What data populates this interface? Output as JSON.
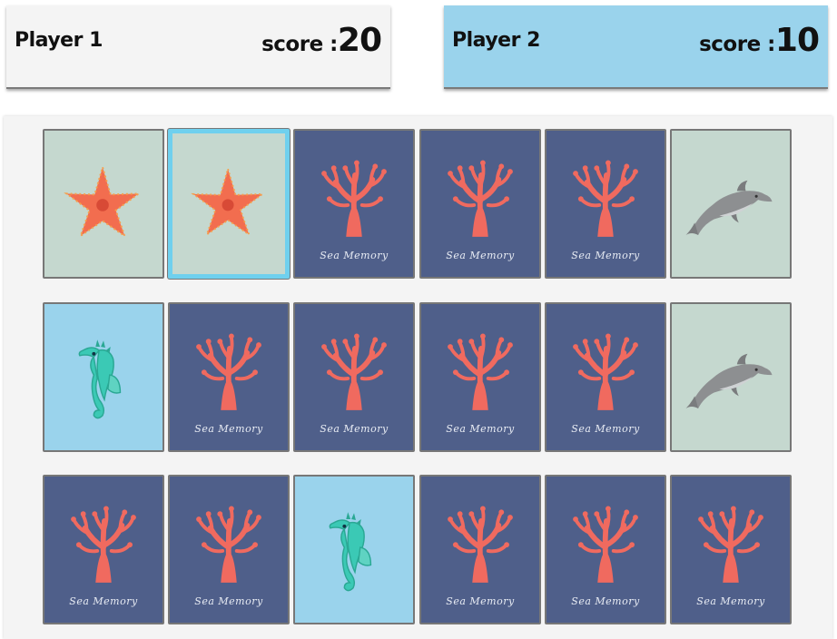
{
  "players": [
    {
      "name": "Player 1",
      "score_label": "score :",
      "score": "20",
      "active": false
    },
    {
      "name": "Player 2",
      "score_label": "score :",
      "score": "10",
      "active": true
    }
  ],
  "colors": {
    "card_back": "#4f5f8a",
    "face_green": "#c5d8cf",
    "face_blue": "#9ad3ec",
    "selected_border": "#6fd0ee",
    "coral": "#f06a5f"
  },
  "brand_text": "Sea Memory",
  "board": [
    [
      "starfish",
      "starfish-selected",
      "back",
      "back",
      "back",
      "dolphin"
    ],
    [
      "seahorse",
      "back",
      "back",
      "back",
      "back",
      "dolphin"
    ],
    [
      "back",
      "back",
      "seahorse",
      "back",
      "back",
      "back"
    ]
  ]
}
